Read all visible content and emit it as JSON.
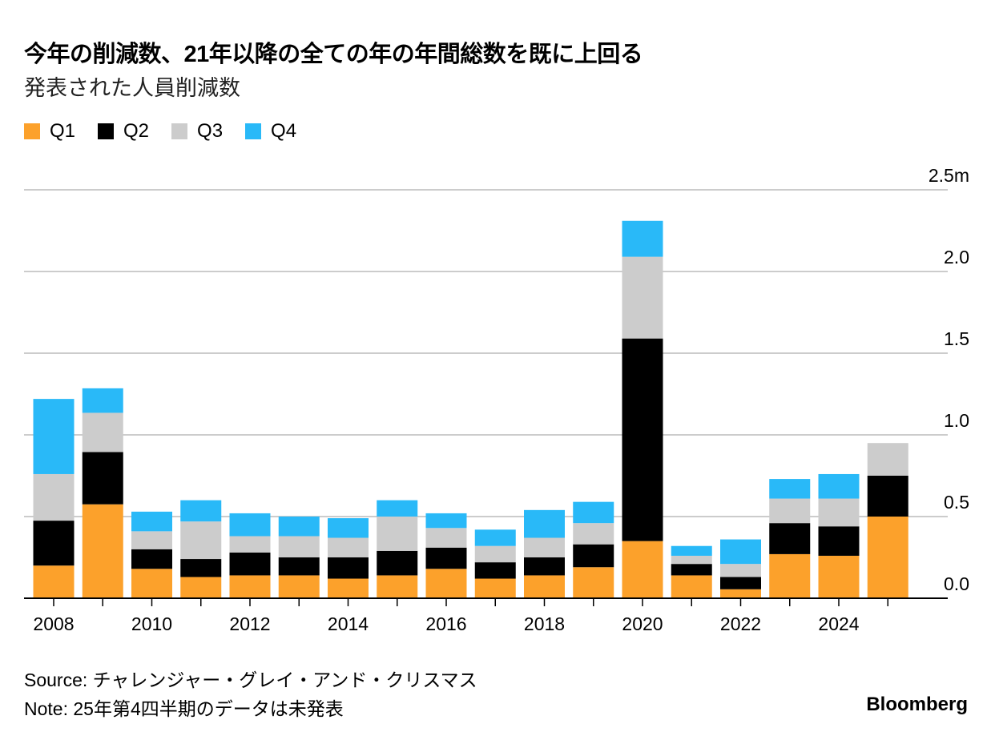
{
  "header": {
    "title": "今年の削減数、21年以降の全ての年の年間総数を既に上回る",
    "subtitle": "発表された人員削減数"
  },
  "footer": {
    "source": "Source: チャレンジャー・グレイ・アンド・クリスマス",
    "note": "Note: 25年第4四半期のデータは未発表",
    "brand": "Bloomberg"
  },
  "chart_data": {
    "type": "bar",
    "stacked": true,
    "title": "今年の削減数、21年以降の全ての年の年間総数を既に上回る",
    "subtitle": "発表された人員削減数",
    "xlabel": "",
    "ylabel": "",
    "ylim": [
      0,
      2.5
    ],
    "y_unit": "m",
    "y_ticks": [
      "0.0",
      "0.5",
      "1.0",
      "1.5",
      "2.0",
      "2.5m"
    ],
    "y_tick_values": [
      0,
      0.5,
      1.0,
      1.5,
      2.0,
      2.5
    ],
    "x_tick_labels": [
      "2008",
      "2010",
      "2012",
      "2014",
      "2016",
      "2018",
      "2020",
      "2022",
      "2024"
    ],
    "grid": true,
    "legend_position": "top-left",
    "categories": [
      "2008",
      "2009",
      "2010",
      "2011",
      "2012",
      "2013",
      "2014",
      "2015",
      "2016",
      "2017",
      "2018",
      "2019",
      "2020",
      "2021",
      "2022",
      "2023",
      "2024",
      "2025"
    ],
    "series": [
      {
        "name": "Q1",
        "color": "#fca12b",
        "values": [
          0.2,
          0.575,
          0.18,
          0.13,
          0.14,
          0.14,
          0.12,
          0.14,
          0.18,
          0.12,
          0.14,
          0.19,
          0.35,
          0.14,
          0.055,
          0.27,
          0.26,
          0.5
        ]
      },
      {
        "name": "Q2",
        "color": "#000000",
        "values": [
          0.275,
          0.32,
          0.12,
          0.11,
          0.14,
          0.11,
          0.13,
          0.15,
          0.13,
          0.1,
          0.11,
          0.14,
          1.24,
          0.07,
          0.075,
          0.19,
          0.18,
          0.25
        ]
      },
      {
        "name": "Q3",
        "color": "#cccccc",
        "values": [
          0.285,
          0.24,
          0.11,
          0.23,
          0.1,
          0.13,
          0.12,
          0.21,
          0.12,
          0.1,
          0.12,
          0.13,
          0.5,
          0.05,
          0.08,
          0.15,
          0.17,
          0.2
        ]
      },
      {
        "name": "Q4",
        "color": "#29b9f8",
        "values": [
          0.46,
          0.15,
          0.12,
          0.13,
          0.14,
          0.12,
          0.12,
          0.1,
          0.09,
          0.1,
          0.17,
          0.13,
          0.22,
          0.06,
          0.15,
          0.12,
          0.15,
          null
        ]
      }
    ]
  }
}
